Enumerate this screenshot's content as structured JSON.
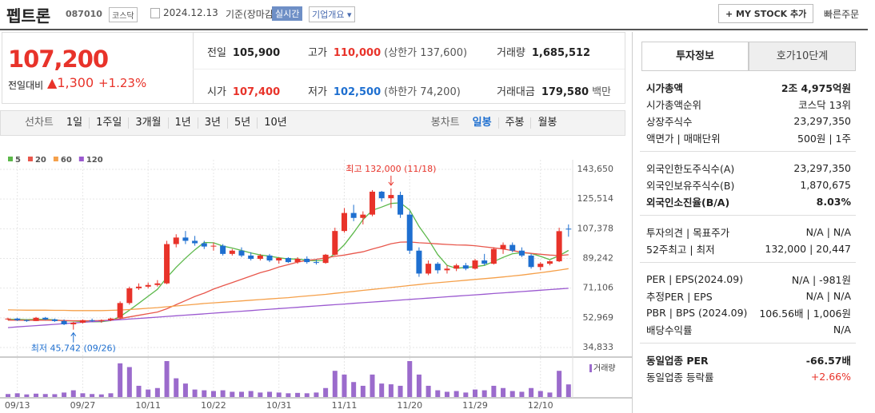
{
  "header": {
    "name": "펩트론",
    "code": "087010",
    "market": "코스닥",
    "date": "2024.12.13",
    "basis": "기준(장마감)",
    "realtime": "실시간",
    "company_info": "기업개요",
    "my_stock": "+ MY STOCK 추가",
    "quick_order": "빠른주문"
  },
  "quote": {
    "price": "107,200",
    "change_label": "전일대비",
    "change": "1,300",
    "rate": "+1.23%",
    "stats": [
      {
        "label": "전일",
        "value": "105,900"
      },
      {
        "label": "고가",
        "value": "110,000",
        "note": "(상한가 137,600)",
        "color": "#e8332a"
      },
      {
        "label": "거래량",
        "value": "1,685,512"
      },
      {
        "label": "시가",
        "value": "107,400",
        "color": "#e8332a"
      },
      {
        "label": "저가",
        "value": "102,500",
        "note": "(하한가 74,200)",
        "color": "#1e6fd0"
      },
      {
        "label": "거래대금",
        "value": "179,580",
        "note": "백만"
      }
    ]
  },
  "periods": {
    "line_label": "선차트",
    "line": [
      "1일",
      "1주일",
      "3개월",
      "1년",
      "3년",
      "5년",
      "10년"
    ],
    "candle_label": "봉차트",
    "candle": [
      "일봉",
      "주봉",
      "월봉"
    ],
    "selected_candle": 0
  },
  "side": {
    "tabs": [
      "투자정보",
      "호가10단계"
    ],
    "active_tab": 0,
    "sections": [
      [
        {
          "label": "시가총액",
          "value": "2조 4,975억원",
          "bold": true
        },
        {
          "label": "시가총액순위",
          "value": "코스닥 13위"
        },
        {
          "label": "상장주식수",
          "value": "23,297,350"
        },
        {
          "label": "액면가 | 매매단위",
          "value": "500원 | 1주"
        }
      ],
      [
        {
          "label": "외국인한도주식수(A)",
          "value": "23,297,350"
        },
        {
          "label": "외국인보유주식수(B)",
          "value": "1,870,675"
        },
        {
          "label": "외국인소진율(B/A)",
          "value": "8.03%",
          "bold": true
        }
      ],
      [
        {
          "label": "투자의견 | 목표주가",
          "value": "N/A | N/A"
        },
        {
          "label": "52주최고 | 최저",
          "value": "132,000 | 20,447"
        }
      ],
      [
        {
          "label": "PER | EPS(2024.09)",
          "value": "N/A | -981원"
        },
        {
          "label": "추정PER | EPS",
          "value": "N/A | N/A"
        },
        {
          "label": "PBR | BPS (2024.09)",
          "value": "106.56배 | 1,006원"
        },
        {
          "label": "배당수익률",
          "value": "N/A"
        }
      ],
      [
        {
          "label": "동일업종 PER",
          "value": "-66.57배",
          "bold": true
        },
        {
          "label": "동일업종 등락률",
          "value": "+2.66%",
          "color": "#e8332a"
        }
      ]
    ]
  },
  "chart_data": {
    "type": "candlestick",
    "categories": [
      null,
      "09/13",
      null,
      null,
      null,
      null,
      null,
      null,
      "09/27",
      null,
      null,
      null,
      null,
      null,
      null,
      "10/11",
      null,
      null,
      null,
      null,
      null,
      null,
      "10/22",
      null,
      null,
      null,
      null,
      null,
      null,
      "10/31",
      null,
      null,
      null,
      null,
      null,
      null,
      "11/11",
      null,
      null,
      null,
      null,
      null,
      null,
      "11/20",
      null,
      null,
      null,
      null,
      null,
      null,
      "11/29",
      null,
      null,
      null,
      null,
      null,
      null,
      "12/10",
      null,
      null,
      null
    ],
    "open": [
      52000,
      52500,
      51500,
      51000,
      53000,
      52000,
      51000,
      49000,
      50000,
      51500,
      51000,
      51500,
      53000,
      62000,
      71000,
      72000,
      73000,
      74000,
      98000,
      102000,
      100000,
      98500,
      96500,
      97000,
      92000,
      94000,
      91000,
      89000,
      91000,
      88000,
      89500,
      87000,
      89000,
      87000,
      86500,
      91500,
      106000,
      117000,
      114000,
      116000,
      130000,
      126000,
      128000,
      116000,
      94000,
      80000,
      86000,
      82000,
      83000,
      85000,
      83000,
      88000,
      86000,
      95000,
      97500,
      94000,
      91000,
      84000,
      86000,
      87500,
      107400
    ],
    "high": [
      53000,
      53000,
      52000,
      53500,
      53500,
      52500,
      52000,
      50500,
      52000,
      52500,
      52000,
      53000,
      63000,
      72000,
      74000,
      74500,
      76000,
      100000,
      104000,
      106000,
      103000,
      100000,
      99000,
      98000,
      95000,
      96000,
      93000,
      92000,
      92000,
      90000,
      90000,
      90000,
      90500,
      88500,
      92000,
      108000,
      120000,
      122000,
      118000,
      131000,
      130500,
      132000,
      130000,
      118000,
      96000,
      88000,
      87000,
      85000,
      86000,
      86500,
      89000,
      92000,
      96000,
      99000,
      99000,
      96000,
      92000,
      87000,
      88000,
      108000,
      110000
    ],
    "low": [
      51500,
      51000,
      50500,
      51000,
      51500,
      50500,
      48500,
      45742,
      49500,
      50500,
      50000,
      51000,
      52500,
      61000,
      70000,
      71000,
      72000,
      73500,
      96000,
      98000,
      97000,
      95000,
      94000,
      91000,
      91000,
      90000,
      88000,
      88000,
      87000,
      86000,
      86500,
      86000,
      86000,
      85500,
      86000,
      91000,
      105000,
      112000,
      110000,
      115000,
      124000,
      120000,
      114000,
      92000,
      78000,
      79000,
      80000,
      80000,
      81500,
      82000,
      82500,
      85000,
      85500,
      92000,
      93000,
      90000,
      83000,
      82000,
      85000,
      87000,
      102500
    ],
    "close": [
      52500,
      51500,
      51000,
      53000,
      52000,
      51000,
      49000,
      50000,
      51500,
      51000,
      51500,
      52500,
      62000,
      71000,
      72000,
      73000,
      74000,
      98000,
      102000,
      100000,
      98500,
      96500,
      97000,
      92000,
      94000,
      91000,
      89000,
      91000,
      88000,
      89500,
      87000,
      89000,
      87000,
      86500,
      91500,
      106000,
      117000,
      114000,
      116000,
      130000,
      126000,
      128000,
      116000,
      94000,
      80000,
      86000,
      82000,
      83000,
      85000,
      83000,
      88000,
      86000,
      95000,
      97500,
      94000,
      91000,
      84000,
      86000,
      87500,
      105900,
      107200
    ],
    "volume": [
      400000,
      500000,
      350000,
      450000,
      400000,
      380000,
      600000,
      900000,
      500000,
      400000,
      350000,
      500000,
      4500000,
      4000000,
      1500000,
      1000000,
      1200000,
      4800000,
      2500000,
      1800000,
      1000000,
      900000,
      800000,
      900000,
      700000,
      700000,
      800000,
      600000,
      700000,
      600000,
      500000,
      550000,
      500000,
      600000,
      1200000,
      3500000,
      3000000,
      2000000,
      1500000,
      3000000,
      1800000,
      1700000,
      1500000,
      4800000,
      3000000,
      1500000,
      900000,
      700000,
      800000,
      600000,
      1000000,
      900000,
      1500000,
      1200000,
      800000,
      700000,
      1200000,
      800000,
      600000,
      3500000,
      1685512
    ],
    "volume_label": "거래량",
    "up_color": "#e8332a",
    "down_color": "#1e6fd0",
    "volume_color": "#9b6bcc",
    "ylim": [
      34833,
      143650
    ],
    "yticks": [
      {
        "value": 34833,
        "label": "34,833"
      },
      {
        "value": 52969,
        "label": "52,969"
      },
      {
        "value": 71106,
        "label": "71,106"
      },
      {
        "value": 89242,
        "label": "89,242"
      },
      {
        "value": 107378,
        "label": "107,378"
      },
      {
        "value": 125514,
        "label": "125,514"
      },
      {
        "value": 143650,
        "label": "143,650"
      }
    ],
    "grid": true,
    "moving_averages": [
      {
        "name": "5",
        "color": "#5cb84a",
        "values": [
          52000,
          52000,
          51800,
          52000,
          52000,
          51700,
          51200,
          51000,
          50700,
          50500,
          50600,
          51300,
          53700,
          57600,
          61800,
          66100,
          70400,
          77600,
          83800,
          89400,
          94500,
          99000,
          98800,
          96800,
          95600,
          94100,
          92600,
          91400,
          90600,
          89700,
          88900,
          88900,
          88100,
          87800,
          88200,
          92000,
          97600,
          105000,
          112900,
          118600,
          120600,
          122800,
          123200,
          118800,
          108800,
          100800,
          91600,
          85000,
          83200,
          83800,
          84200,
          85000,
          87400,
          89900,
          92100,
          92700,
          92300,
          90500,
          88500,
          90900,
          94100
        ]
      },
      {
        "name": "20",
        "color": "#e8574c",
        "values": [
          51500,
          51500,
          51400,
          51500,
          51500,
          51400,
          51300,
          51200,
          51200,
          51200,
          51300,
          51500,
          52500,
          53500,
          54500,
          55500,
          56500,
          58500,
          61000,
          63500,
          66000,
          68000,
          70500,
          72500,
          74500,
          76500,
          78500,
          80500,
          82000,
          84000,
          85500,
          87000,
          88000,
          88700,
          89600,
          90500,
          91300,
          92300,
          93300,
          95000,
          96500,
          98200,
          99200,
          99300,
          98800,
          98500,
          98100,
          97800,
          97500,
          97400,
          97000,
          96300,
          95700,
          95000,
          94000,
          93000,
          92300,
          91800,
          91300,
          91000,
          91500
        ]
      },
      {
        "name": "60",
        "color": "#f5a04a",
        "values": [
          57800,
          57700,
          57600,
          57600,
          57600,
          57500,
          57500,
          57400,
          57400,
          57400,
          57400,
          57500,
          57700,
          58000,
          58400,
          58800,
          59200,
          59700,
          60200,
          60700,
          61200,
          61700,
          62100,
          62500,
          62900,
          63300,
          63700,
          64100,
          64500,
          64900,
          65300,
          65800,
          66300,
          66800,
          67300,
          67900,
          68500,
          69100,
          69700,
          70300,
          70900,
          71500,
          72100,
          72700,
          73300,
          73900,
          74400,
          74900,
          75400,
          75900,
          76400,
          76900,
          77400,
          77900,
          78500,
          79100,
          79800,
          80500,
          81300,
          82100,
          83000
        ]
      },
      {
        "name": "120",
        "color": "#9b59d0",
        "values": [
          47000,
          47400,
          47800,
          48200,
          48600,
          49000,
          49400,
          49800,
          50200,
          50600,
          51000,
          51400,
          51800,
          52200,
          52600,
          53000,
          53400,
          53800,
          54200,
          54600,
          55000,
          55400,
          55800,
          56200,
          56600,
          57000,
          57400,
          57800,
          58200,
          58600,
          59000,
          59400,
          59800,
          60200,
          60600,
          61000,
          61400,
          61800,
          62200,
          62600,
          63000,
          63400,
          63800,
          64200,
          64600,
          65000,
          65400,
          65800,
          66200,
          66600,
          67000,
          67400,
          67800,
          68200,
          68600,
          69000,
          69400,
          69800,
          70200,
          70600,
          71000
        ]
      }
    ],
    "annotations": [
      {
        "kind": "high",
        "text": "최고 132,000 (11/18)"
      },
      {
        "kind": "low",
        "text": "최저 45,742 (09/26)"
      }
    ]
  }
}
